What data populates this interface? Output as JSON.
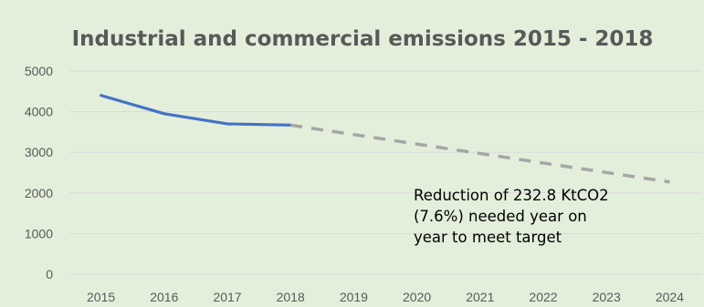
{
  "chart_data": {
    "type": "line",
    "title": "Industrial and commercial emissions 2015 - 2018",
    "xlabel": "",
    "ylabel": "",
    "categories": [
      "2015",
      "2016",
      "2017",
      "2018",
      "2019",
      "2020",
      "2021",
      "2022",
      "2023",
      "2024"
    ],
    "yticks": [
      "0",
      "1000",
      "2000",
      "3000",
      "4000",
      "5000"
    ],
    "ylim": [
      0,
      5000
    ],
    "grid": true,
    "legend": "none",
    "series": [
      {
        "style": "solid",
        "color": "#4472c4",
        "x": [
          "2015",
          "2016",
          "2017",
          "2018"
        ],
        "values": [
          4400,
          3950,
          3700,
          3670
        ]
      },
      {
        "style": "dashed",
        "color": "#a6a6a6",
        "x": [
          "2018",
          "2024"
        ],
        "values": [
          3670,
          2270
        ]
      }
    ],
    "annotation": {
      "lines": [
        "Reduction of 232.8 KtCO2",
        "(7.6%) needed year on",
        "year to meet target"
      ]
    },
    "colors": {
      "background": "#e3efdb",
      "gridline": "#d9d9d9",
      "text": "#595959"
    }
  }
}
